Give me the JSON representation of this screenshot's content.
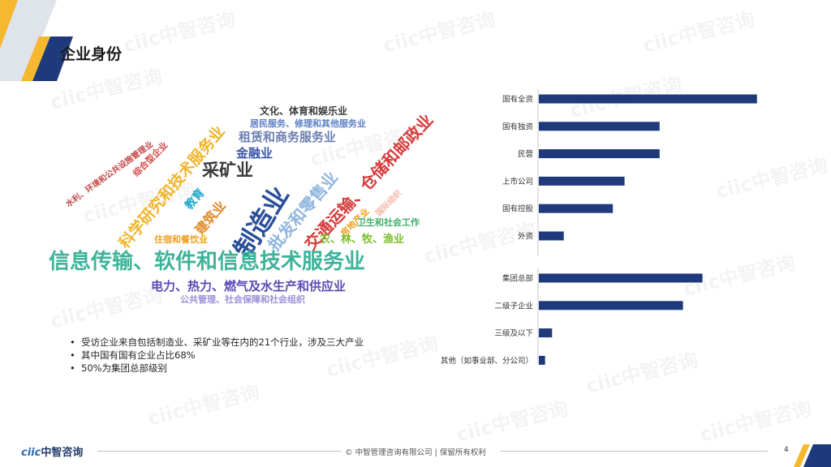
{
  "header": {
    "title": "企业身份"
  },
  "watermark": {
    "text": "ciic中智咨询"
  },
  "wordcloud": {
    "words": [
      "文化、体育和娱乐业",
      "居民服务、修理和其他服务业",
      "租赁和商务服务业",
      "金融业",
      "采矿业",
      "综合型企业",
      "水利、环境和公共设施管理业",
      "科学研究和技术服务业",
      "教育",
      "建筑业",
      "制造业",
      "批发和零售业",
      "交通运输、仓储和邮政业",
      "房地产业",
      "国际组织",
      "卫生和社会工作",
      "住宿和餐饮业",
      "农、林、牧、渔业",
      "信息传输、软件和信息技术服务业",
      "电力、热力、燃气及水生产和供应业",
      "公共管理、社会保障和社会组织"
    ]
  },
  "bullets": [
    "受访企业来自包括制造业、采矿业等在内的21个行业，涉及三大产业",
    "其中国有国有企业占比68%",
    "50%为集团总部级别"
  ],
  "chart_data": [
    {
      "type": "bar",
      "orientation": "horizontal",
      "categories": [
        "国有全资",
        "国有独资",
        "民营",
        "上市公司",
        "国有控股",
        "外资"
      ],
      "values": [
        28,
        15.5,
        15.5,
        11,
        9.5,
        3.2
      ],
      "color": "#1f3a7a"
    },
    {
      "type": "bar",
      "orientation": "horizontal",
      "categories": [
        "集团总部",
        "二级子企业",
        "三级及以下",
        "其他（如事业部、分公司）"
      ],
      "values": [
        21,
        18.5,
        1.7,
        0.8
      ],
      "color": "#1f3a7a"
    }
  ],
  "footer": {
    "copyright": "© 中智管理咨询有限公司 | 保留所有权利",
    "page": "4",
    "logo_latin": "ciic",
    "logo_cn": "中智咨询"
  },
  "colors": {
    "accent_navy": "#1f3a7a",
    "accent_gold": "#f5b82e"
  }
}
